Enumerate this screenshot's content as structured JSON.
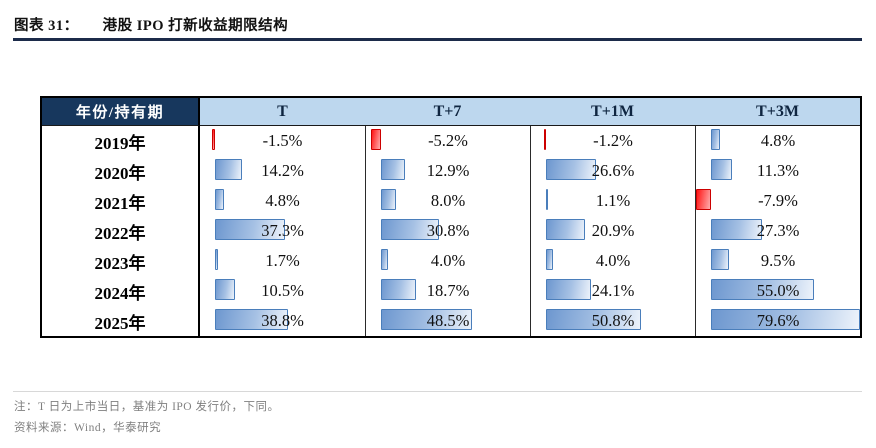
{
  "figure": {
    "label": "图表 31：",
    "title": "港股 IPO 打新收益期限结构"
  },
  "table": {
    "corner_header": "年份/持有期",
    "columns": [
      "T",
      "T+7",
      "T+1M",
      "T+3M"
    ],
    "rows": [
      {
        "year": "2019年",
        "values": [
          -1.5,
          -5.2,
          -1.2,
          4.8
        ],
        "display": [
          "-1.5%",
          "-5.2%",
          "-1.2%",
          "4.8%"
        ]
      },
      {
        "year": "2020年",
        "values": [
          14.2,
          12.9,
          26.6,
          11.3
        ],
        "display": [
          "14.2%",
          "12.9%",
          "26.6%",
          "11.3%"
        ]
      },
      {
        "year": "2021年",
        "values": [
          4.8,
          8.0,
          1.1,
          -7.9
        ],
        "display": [
          "4.8%",
          "8.0%",
          "1.1%",
          "-7.9%"
        ]
      },
      {
        "year": "2022年",
        "values": [
          37.3,
          30.8,
          20.9,
          27.3
        ],
        "display": [
          "37.3%",
          "30.8%",
          "20.9%",
          "27.3%"
        ]
      },
      {
        "year": "2023年",
        "values": [
          1.7,
          4.0,
          4.0,
          9.5
        ],
        "display": [
          "1.7%",
          "4.0%",
          "4.0%",
          "9.5%"
        ]
      },
      {
        "year": "2024年",
        "values": [
          10.5,
          18.7,
          24.1,
          55.0
        ],
        "display": [
          "10.5%",
          "18.7%",
          "24.1%",
          "55.0%"
        ]
      },
      {
        "year": "2025年",
        "values": [
          38.8,
          48.5,
          50.8,
          79.6
        ],
        "display": [
          "38.8%",
          "48.5%",
          "50.8%",
          "79.6%"
        ]
      }
    ]
  },
  "notes": {
    "note": "注：T 日为上市当日，基准为 IPO 发行价，下同。",
    "source": "资料来源：Wind，华泰研究"
  },
  "colors": {
    "title_rule": "#1c2b4a",
    "header_bg": "#17375D",
    "header_fg": "#FFFFFF",
    "subheader_bg": "#BDD7EE",
    "subheader_fg": "#0F2540",
    "bar_pos_border": "#4A7EBB",
    "bar_pos_start": "#6D97CF",
    "bar_pos_mid": "#A6C1E4",
    "bar_pos_end": "#EDF3FB",
    "bar_neg_border": "#CC0000",
    "bar_neg_start": "#FF1414",
    "bar_neg_end": "#FFADAD",
    "note_fg": "#808080"
  },
  "chart_data": {
    "type": "table",
    "title": "港股IPO打新收益期限结构",
    "categories": [
      "2019年",
      "2020年",
      "2021年",
      "2022年",
      "2023年",
      "2024年",
      "2025年"
    ],
    "series": [
      {
        "name": "T",
        "values": [
          -1.5,
          14.2,
          4.8,
          37.3,
          1.7,
          10.5,
          38.8
        ]
      },
      {
        "name": "T+7",
        "values": [
          -5.2,
          12.9,
          8.0,
          30.8,
          4.0,
          18.7,
          48.5
        ]
      },
      {
        "name": "T+1M",
        "values": [
          -1.2,
          26.6,
          1.1,
          20.9,
          4.0,
          24.1,
          50.8
        ]
      },
      {
        "name": "T+3M",
        "values": [
          4.8,
          11.3,
          -7.9,
          27.3,
          9.5,
          55.0,
          79.6
        ]
      }
    ],
    "unit": "%",
    "bar_scale": {
      "min": -7.9,
      "max": 79.6
    },
    "legend_position": "none",
    "grid": false,
    "positive_color": "#6D97CF",
    "negative_color": "#FF0000"
  }
}
